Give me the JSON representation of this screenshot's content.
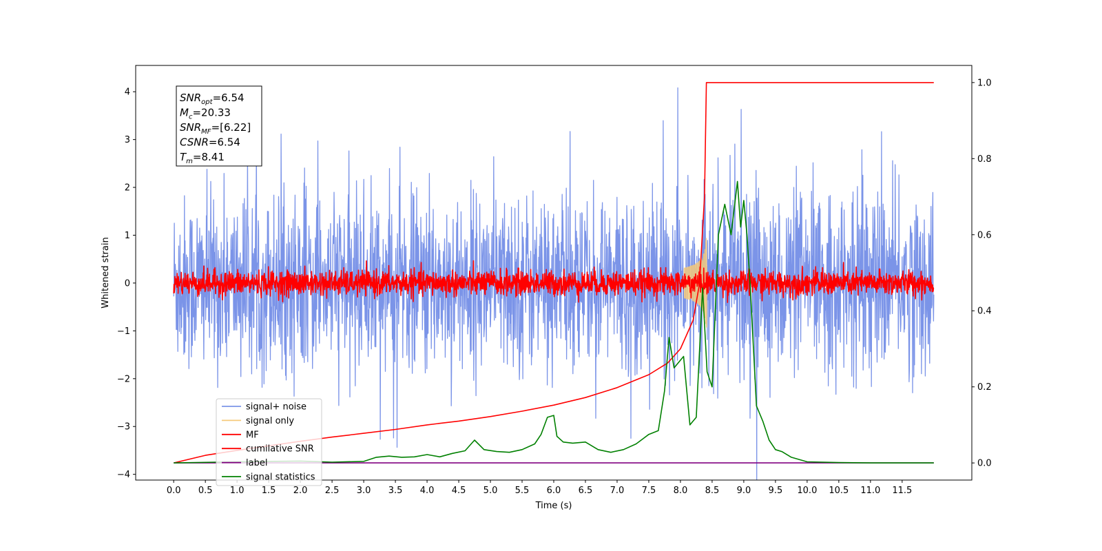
{
  "chart_data": {
    "type": "line",
    "xlabel": "Time (s)",
    "ylabel": "Whitened strain",
    "xlim": [
      -0.6,
      12.6
    ],
    "ylim": [
      -4.12,
      4.55
    ],
    "ylim_right": [
      -0.045,
      1.045
    ],
    "x_ticks": [
      "0.0",
      "0.5",
      "1.0",
      "1.5",
      "2.0",
      "2.5",
      "3.0",
      "3.5",
      "4.0",
      "4.5",
      "5.0",
      "5.5",
      "6.0",
      "6.5",
      "7.0",
      "7.5",
      "8.0",
      "8.5",
      "9.0",
      "9.5",
      "10.0",
      "10.5",
      "11.0",
      "11.5"
    ],
    "y_ticks_left": [
      "4",
      "3",
      "2",
      "1",
      "0",
      "−1",
      "−2",
      "−3",
      "−4"
    ],
    "y_ticks_right": [
      "1.0",
      "0.8",
      "0.6",
      "0.4",
      "0.2",
      "0.0"
    ],
    "grid": false,
    "legend_position": "lower-left",
    "annotation": {
      "snr_opt": {
        "base": "SNR",
        "sub": "opt",
        "value": "=6.54"
      },
      "mc": {
        "base": "M",
        "sub": "c",
        "value": "=20.33"
      },
      "snr_mf": {
        "base": "SNR",
        "sub": "MF",
        "value": "=[6.22]"
      },
      "csnr": {
        "base": "CSNR",
        "sub": "",
        "value": "=6.54"
      },
      "tm": {
        "base": "T",
        "sub": "m",
        "value": "=8.41"
      }
    },
    "series": [
      {
        "name": "signal+ noise",
        "color": "#7b94e8",
        "axis": "left",
        "kind": "noise",
        "sigma": 0.9,
        "x_range": [
          0.0,
          12.0
        ],
        "spike_max": 4.15
      },
      {
        "name": "signal only",
        "color": "#f5c97a",
        "axis": "left",
        "kind": "chirp",
        "peak_time": 8.41,
        "peak_amp": 1.1
      },
      {
        "name": "MF",
        "color": "#ff0000",
        "axis": "left",
        "kind": "noise",
        "sigma": 0.13,
        "x_range": [
          0.0,
          12.0
        ]
      },
      {
        "name": "cumilative SNR",
        "color": "#ff0000",
        "axis": "right",
        "x": [
          0.0,
          0.5,
          1.0,
          1.5,
          2.0,
          2.5,
          3.0,
          3.5,
          4.0,
          4.5,
          5.0,
          5.5,
          6.0,
          6.5,
          7.0,
          7.5,
          7.8,
          8.0,
          8.2,
          8.3,
          8.38,
          8.41,
          8.5,
          9.0,
          10.0,
          11.0,
          11.5,
          12.0
        ],
        "y": [
          0.0,
          0.02,
          0.033,
          0.045,
          0.057,
          0.068,
          0.078,
          0.088,
          0.1,
          0.11,
          0.122,
          0.136,
          0.152,
          0.172,
          0.198,
          0.232,
          0.263,
          0.3,
          0.375,
          0.47,
          0.7,
          1.0,
          1.0,
          1.0,
          1.0,
          1.0,
          1.0,
          1.0
        ]
      },
      {
        "name": "label",
        "color": "#800080",
        "axis": "right",
        "x": [
          0.0,
          12.0
        ],
        "y": [
          0.0,
          0.0
        ]
      },
      {
        "name": "signal statistics",
        "color": "#008000",
        "axis": "right",
        "x": [
          0.0,
          1.0,
          2.0,
          2.5,
          3.0,
          3.2,
          3.4,
          3.6,
          3.8,
          4.0,
          4.2,
          4.4,
          4.6,
          4.75,
          4.9,
          5.1,
          5.3,
          5.5,
          5.7,
          5.8,
          5.9,
          6.0,
          6.05,
          6.15,
          6.3,
          6.5,
          6.7,
          6.9,
          7.1,
          7.3,
          7.5,
          7.65,
          7.75,
          7.82,
          7.9,
          8.0,
          8.05,
          8.15,
          8.25,
          8.35,
          8.42,
          8.5,
          8.6,
          8.7,
          8.8,
          8.9,
          8.95,
          9.0,
          9.05,
          9.1,
          9.2,
          9.3,
          9.4,
          9.5,
          9.6,
          9.75,
          10.0,
          10.5,
          11.0,
          12.0
        ],
        "y": [
          0.0,
          0.003,
          0.005,
          0.002,
          0.004,
          0.015,
          0.018,
          0.015,
          0.016,
          0.022,
          0.016,
          0.025,
          0.032,
          0.06,
          0.035,
          0.03,
          0.028,
          0.035,
          0.05,
          0.075,
          0.12,
          0.125,
          0.07,
          0.055,
          0.052,
          0.055,
          0.035,
          0.028,
          0.035,
          0.05,
          0.075,
          0.085,
          0.19,
          0.33,
          0.25,
          0.27,
          0.28,
          0.1,
          0.12,
          0.46,
          0.24,
          0.2,
          0.6,
          0.68,
          0.6,
          0.74,
          0.62,
          0.69,
          0.6,
          0.47,
          0.15,
          0.11,
          0.06,
          0.035,
          0.03,
          0.015,
          0.003,
          0.001,
          0.0,
          0.0
        ]
      }
    ]
  }
}
